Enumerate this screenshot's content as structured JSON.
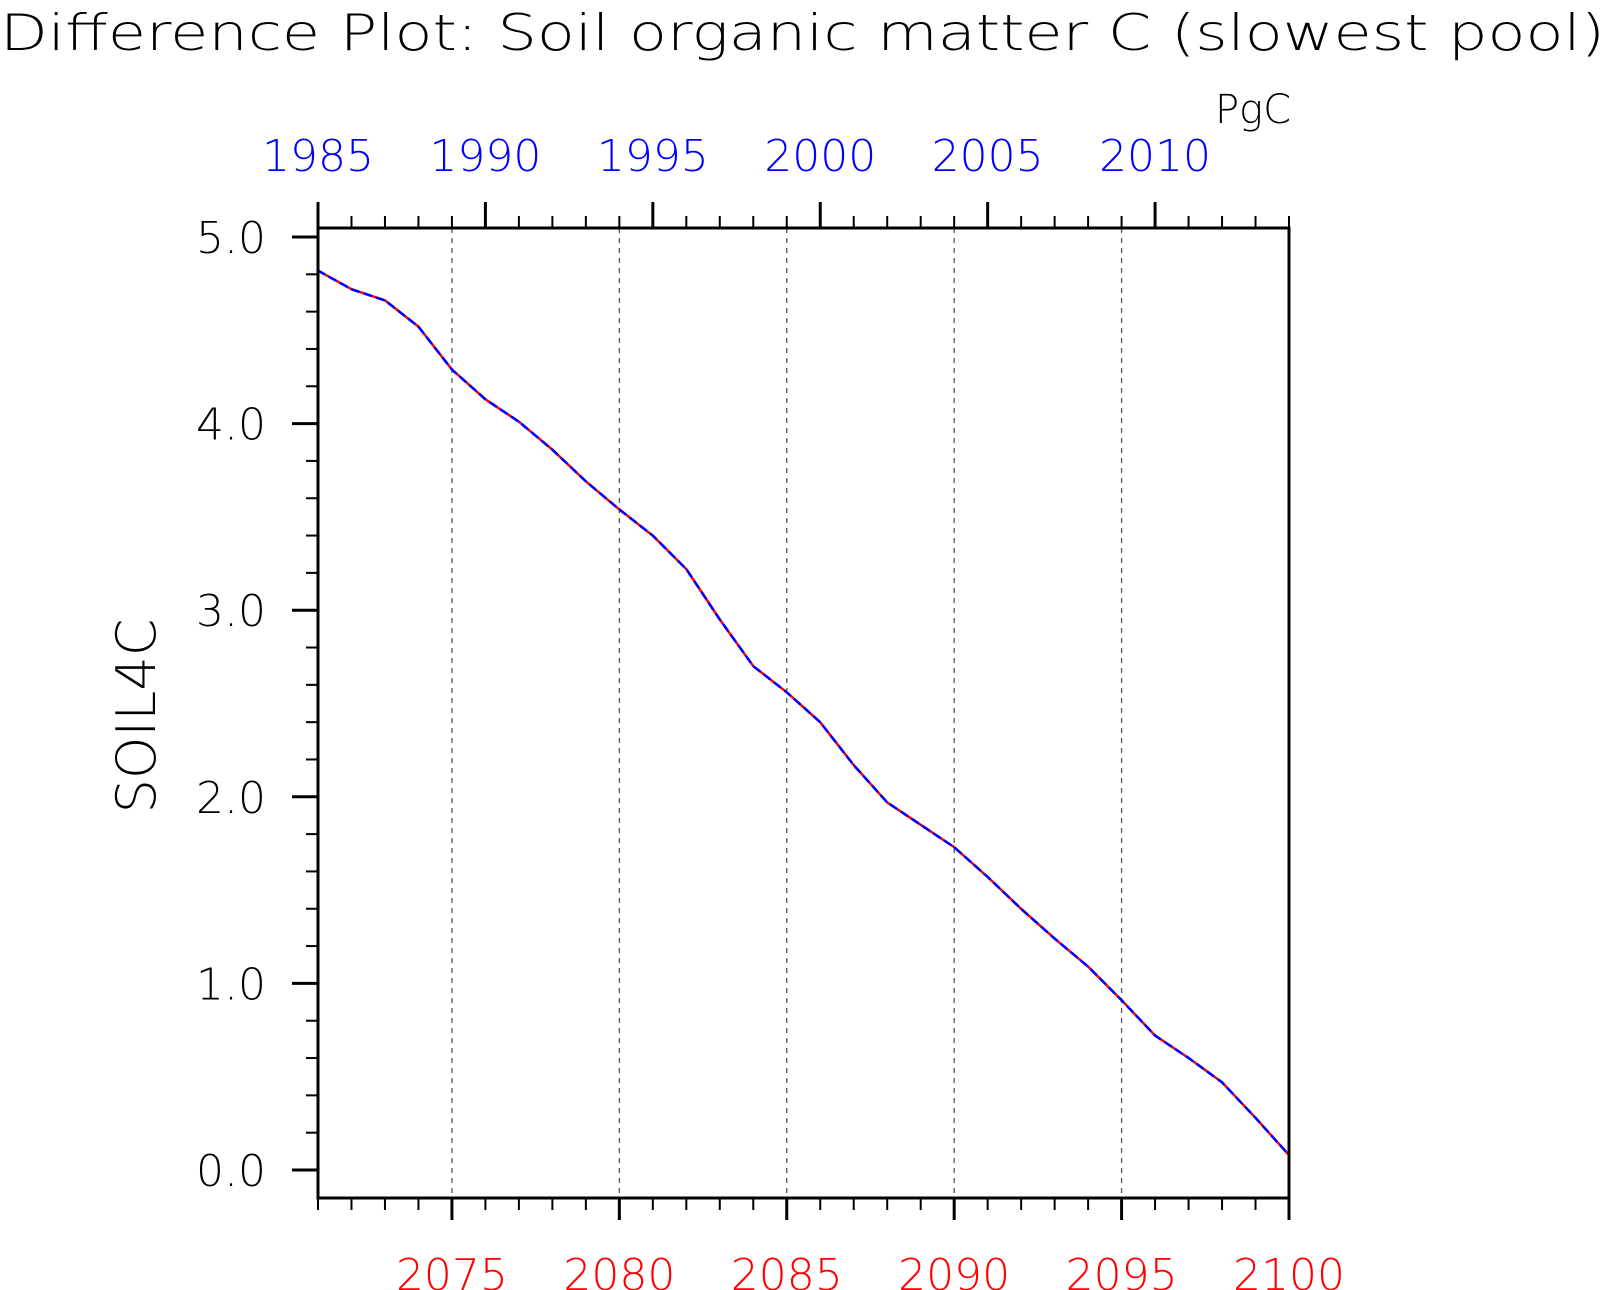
{
  "chart_data": {
    "type": "line",
    "title": "Difference Plot: Soil organic matter C (slowest pool)",
    "units": "PgC",
    "ylabel": "SOIL4C",
    "xlabel": "",
    "ylim": [
      0.0,
      5.0
    ],
    "y_ticks": [
      "0.0",
      "1.0",
      "2.0",
      "3.0",
      "4.0",
      "5.0"
    ],
    "grid": "vertical dashed lines at bottom-axis labeled ticks",
    "bottom_axis": {
      "color": "#ff0000",
      "range": [
        2071,
        2100
      ],
      "tick_labels": [
        "2075",
        "2080",
        "2085",
        "2090",
        "2095",
        "2100"
      ]
    },
    "top_axis": {
      "color": "#0000ff",
      "range": [
        1985,
        2014
      ],
      "tick_labels": [
        "1985",
        "1990",
        "1995",
        "2000",
        "2005",
        "2010"
      ]
    },
    "x": [
      2071,
      2072,
      2073,
      2074,
      2075,
      2076,
      2077,
      2078,
      2079,
      2080,
      2081,
      2082,
      2083,
      2084,
      2085,
      2086,
      2087,
      2088,
      2089,
      2090,
      2091,
      2092,
      2093,
      2094,
      2095,
      2096,
      2097,
      2098,
      2099,
      2100
    ],
    "series": [
      {
        "color": "#ff0000",
        "style": "solid",
        "values": [
          4.82,
          4.72,
          4.66,
          4.52,
          4.29,
          4.13,
          4.01,
          3.86,
          3.69,
          3.54,
          3.4,
          3.22,
          2.95,
          2.7,
          2.56,
          2.4,
          2.17,
          1.97,
          1.85,
          1.73,
          1.57,
          1.4,
          1.24,
          1.09,
          0.91,
          0.72,
          0.6,
          0.47,
          0.28,
          0.08
        ]
      },
      {
        "color": "#0000ff",
        "style": "dashed",
        "values": [
          4.82,
          4.72,
          4.66,
          4.52,
          4.29,
          4.13,
          4.01,
          3.86,
          3.69,
          3.54,
          3.4,
          3.22,
          2.95,
          2.7,
          2.56,
          2.4,
          2.17,
          1.97,
          1.85,
          1.73,
          1.57,
          1.4,
          1.24,
          1.09,
          0.91,
          0.72,
          0.6,
          0.47,
          0.28,
          0.08
        ]
      }
    ]
  }
}
